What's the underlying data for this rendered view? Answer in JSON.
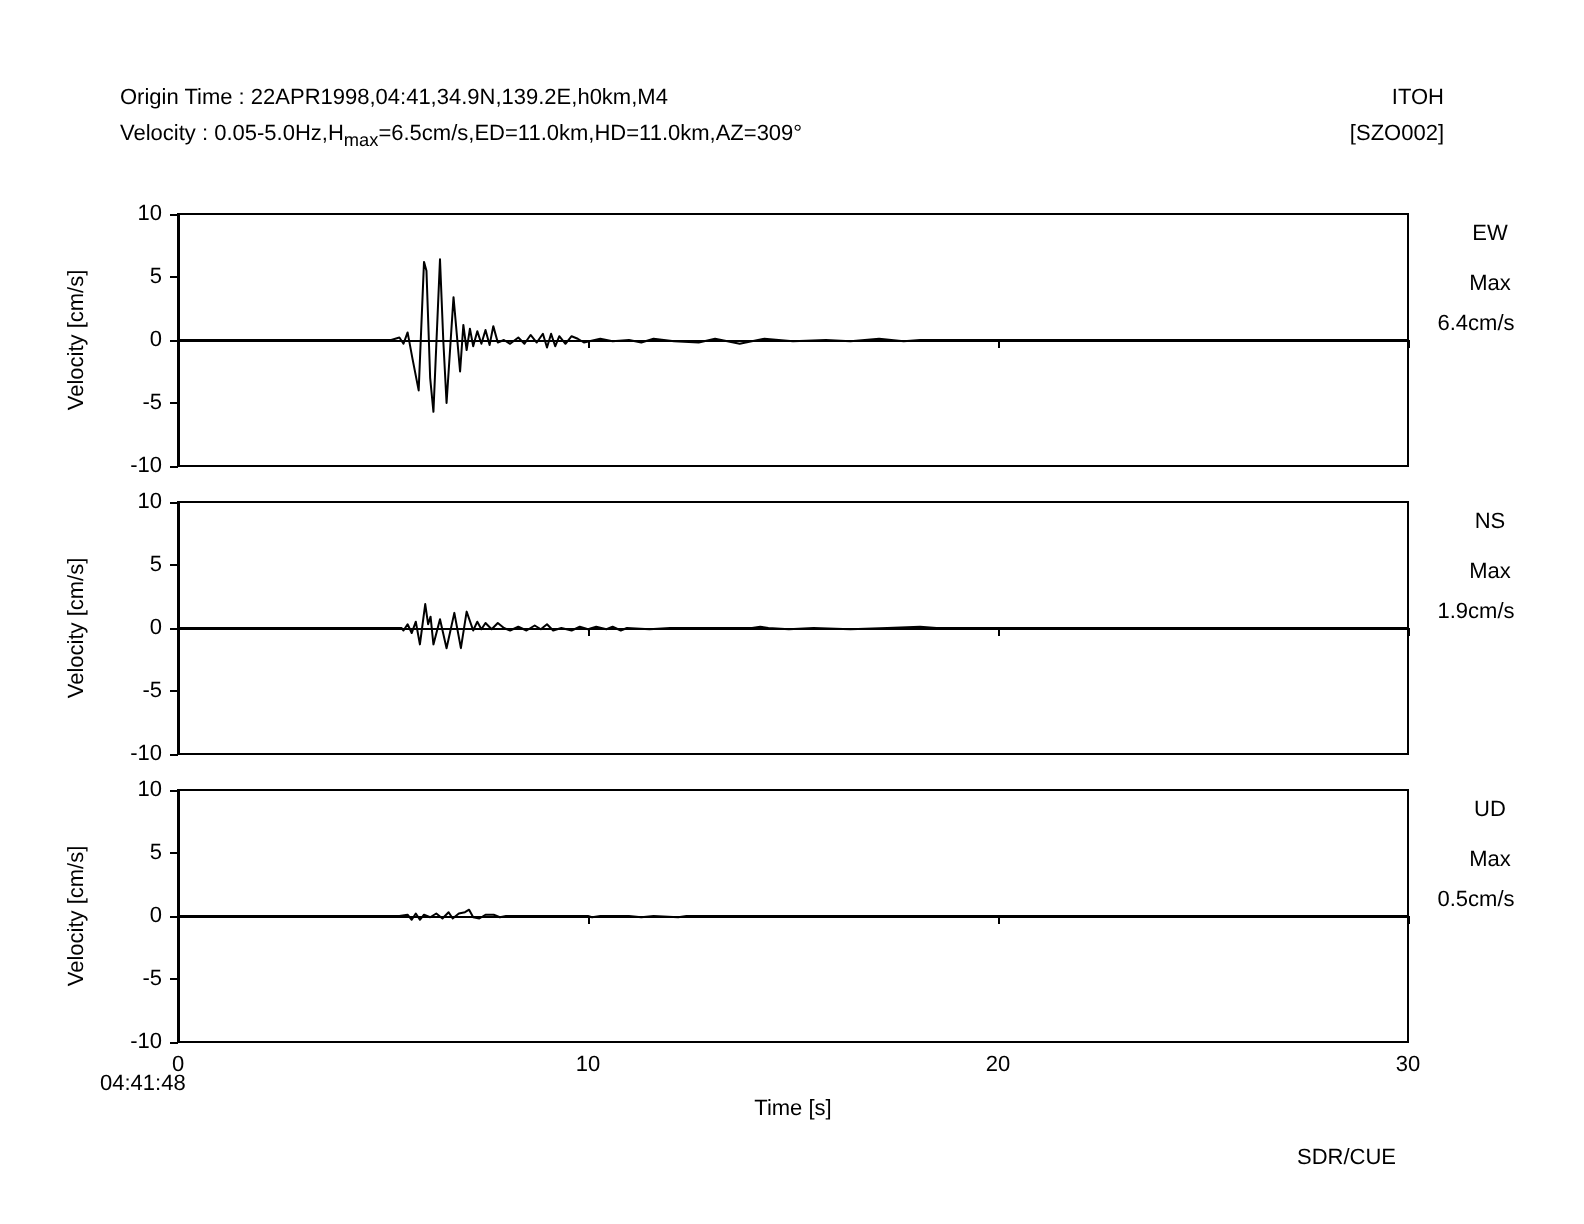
{
  "chart_data": [
    {
      "type": "line",
      "subtitle": "Origin Time : 22APR1998,04:41,34.9N,139.2E,h0km,M4",
      "annotations": [
        "EW",
        "Max",
        "6.4cm/s",
        "Velocity : 0.05-5.0Hz,H$_{max}$=6.5cm/s,ED=11.0km,HD=11.0km,AZ=309°",
        "ITOH",
        "[SZO002]"
      ],
      "ylabel": "Velocity [cm/s]",
      "xlim": [
        0,
        30
      ],
      "xticks": [
        0,
        10,
        20,
        30
      ],
      "ylim": [
        -10,
        10
      ],
      "yticks": [
        -10,
        -5,
        0,
        5,
        10
      ],
      "tick_labels": "y",
      "marker": "none",
      "series": [
        {
          "color": "#000000",
          "x": [
            0,
            4.3,
            5.2,
            5.4,
            5.5,
            5.6,
            5.72,
            5.87,
            6.0,
            6.06,
            6.15,
            6.23,
            6.39,
            6.47,
            6.55,
            6.72,
            6.88,
            6.96,
            7.04,
            7.12,
            7.2,
            7.3,
            7.4,
            7.5,
            7.6,
            7.69,
            7.8,
            7.95,
            8.1,
            8.3,
            8.45,
            8.6,
            8.75,
            8.9,
            9.0,
            9.1,
            9.2,
            9.3,
            9.45,
            9.6,
            9.75,
            9.9,
            10.3,
            10.6,
            11.0,
            11.3,
            11.6,
            12.1,
            12.7,
            13.1,
            13.7,
            14.3,
            15.0,
            15.8,
            16.4,
            17.1,
            17.7,
            18.1,
            30
          ],
          "values": [
            0,
            0,
            0,
            0.2,
            -0.3,
            0.6,
            -1.5,
            -4.0,
            6.2,
            5.5,
            -3,
            -5.7,
            6.4,
            0,
            -5.0,
            3.4,
            -2.5,
            1.2,
            -0.8,
            0.9,
            -0.5,
            0.7,
            -0.3,
            0.8,
            -0.4,
            1.1,
            -0.2,
            0,
            -0.3,
            0.2,
            -0.3,
            0.4,
            -0.2,
            0.5,
            -0.6,
            0.5,
            -0.5,
            0.3,
            -0.3,
            0.3,
            0.1,
            -0.2,
            0.1,
            -0.1,
            0,
            -0.2,
            0.1,
            -0.1,
            -0.2,
            0.1,
            -0.3,
            0.1,
            -0.1,
            0,
            -0.1,
            0.1,
            -0.1,
            0,
            0
          ]
        }
      ]
    },
    {
      "type": "line",
      "annotations": [
        "NS",
        "Max",
        "1.9cm/s"
      ],
      "ylabel": "Velocity [cm/s]",
      "xlim": [
        0,
        30
      ],
      "xticks": [
        0,
        10,
        20,
        30
      ],
      "ylim": [
        -10,
        10
      ],
      "yticks": [
        -10,
        -5,
        0,
        5,
        10
      ],
      "tick_labels": "y",
      "marker": "none",
      "series": [
        {
          "color": "#000000",
          "x": [
            0,
            5.2,
            5.45,
            5.5,
            5.6,
            5.7,
            5.8,
            5.9,
            6.03,
            6.1,
            6.16,
            6.23,
            6.39,
            6.55,
            6.74,
            6.9,
            7.04,
            7.2,
            7.3,
            7.4,
            7.5,
            7.65,
            7.8,
            7.95,
            8.1,
            8.3,
            8.5,
            8.7,
            8.85,
            9.0,
            9.15,
            9.35,
            9.6,
            9.8,
            10.0,
            10.2,
            10.45,
            10.6,
            10.8,
            10.95,
            11.5,
            12.0,
            14.0,
            14.2,
            14.4,
            14.9,
            15.5,
            16.4,
            17.3,
            18.1,
            18.5,
            30
          ],
          "values": [
            0,
            0,
            0,
            -0.2,
            0.3,
            -0.4,
            0.5,
            -1.3,
            1.9,
            0.3,
            0.9,
            -1.3,
            0.7,
            -1.6,
            1.2,
            -1.6,
            1.3,
            -0.2,
            0.5,
            -0.1,
            0.4,
            -0.1,
            0.4,
            0,
            -0.2,
            0.1,
            -0.2,
            0.2,
            -0.1,
            0.3,
            -0.2,
            0,
            -0.2,
            0.1,
            -0.1,
            0.1,
            -0.1,
            0.1,
            -0.2,
            0,
            -0.1,
            0,
            0,
            0.1,
            0,
            -0.1,
            0,
            -0.1,
            0,
            0.1,
            0,
            0
          ]
        }
      ]
    },
    {
      "type": "line",
      "annotations": [
        "UD",
        "Max",
        "0.5cm/s",
        "04:41:48",
        "SDR/CUE"
      ],
      "ylabel": "Velocity [cm/s]",
      "xlabel": "Time [s]",
      "xlim": [
        0,
        30
      ],
      "xticks": [
        0,
        10,
        20,
        30
      ],
      "ylim": [
        -10,
        10
      ],
      "yticks": [
        -10,
        -5,
        0,
        5,
        10
      ],
      "marker": "none",
      "series": [
        {
          "color": "#000000",
          "x": [
            0,
            3.9,
            5.4,
            5.6,
            5.7,
            5.8,
            5.9,
            6.0,
            6.15,
            6.3,
            6.45,
            6.6,
            6.7,
            6.85,
            7.0,
            7.1,
            7.2,
            7.35,
            7.5,
            7.7,
            7.85,
            8.0,
            10.0,
            10.1,
            10.3,
            11.0,
            11.3,
            11.6,
            12.2,
            12.4,
            13.0,
            30
          ],
          "values": [
            0,
            0,
            0,
            0.1,
            -0.3,
            0.2,
            -0.3,
            0.1,
            -0.1,
            0.2,
            -0.2,
            0.3,
            -0.2,
            0.2,
            0.3,
            0.5,
            -0.1,
            -0.2,
            0.1,
            0.1,
            -0.1,
            0,
            0,
            -0.1,
            0,
            0,
            -0.1,
            0,
            -0.1,
            0,
            0,
            0
          ]
        }
      ]
    }
  ]
}
